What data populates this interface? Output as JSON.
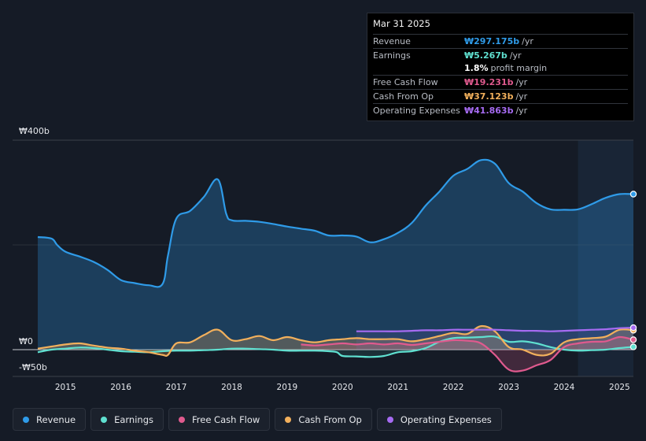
{
  "tooltip": {
    "date": "Mar 31 2025",
    "rows": [
      {
        "label": "Revenue",
        "value": "₩297.175b",
        "unit": "/yr",
        "color": "#2f9be8"
      },
      {
        "label": "Earnings",
        "value": "₩5.267b",
        "unit": "/yr",
        "color": "#5fe0d0"
      },
      {
        "label": "",
        "value": "1.8%",
        "unit": "profit margin",
        "color": "#ffffff"
      },
      {
        "label": "Free Cash Flow",
        "value": "₩19.231b",
        "unit": "/yr",
        "color": "#e05a8e"
      },
      {
        "label": "Cash From Op",
        "value": "₩37.123b",
        "unit": "/yr",
        "color": "#f2b05c"
      },
      {
        "label": "Operating Expenses",
        "value": "₩41.863b",
        "unit": "/yr",
        "color": "#a66bf2"
      }
    ]
  },
  "legend": [
    {
      "label": "Revenue",
      "color": "#2f9be8"
    },
    {
      "label": "Earnings",
      "color": "#5fe0d0"
    },
    {
      "label": "Free Cash Flow",
      "color": "#e05a8e"
    },
    {
      "label": "Cash From Op",
      "color": "#f2b05c"
    },
    {
      "label": "Operating Expenses",
      "color": "#a66bf2"
    }
  ],
  "chart_data": {
    "type": "area",
    "title": "",
    "y_axis_labels": [
      "₩400b",
      "₩0",
      "-₩50b"
    ],
    "ylim": [
      -50,
      400
    ],
    "x_ticks": [
      "2015",
      "2016",
      "2017",
      "2018",
      "2019",
      "2020",
      "2021",
      "2022",
      "2023",
      "2024",
      "2025"
    ],
    "xlim": [
      2014.5,
      2025.25
    ],
    "forecast_start": 2024.25,
    "series": [
      {
        "name": "Revenue",
        "color": "#2f9be8",
        "x": [
          2014.5,
          2014.75,
          2014.85,
          2015.0,
          2015.25,
          2015.5,
          2015.75,
          2016.0,
          2016.25,
          2016.5,
          2016.75,
          2016.85,
          2017.0,
          2017.25,
          2017.5,
          2017.75,
          2017.9,
          2018.0,
          2018.25,
          2018.5,
          2018.75,
          2019.0,
          2019.25,
          2019.5,
          2019.75,
          2020.0,
          2020.25,
          2020.5,
          2020.75,
          2021.0,
          2021.25,
          2021.5,
          2021.75,
          2022.0,
          2022.25,
          2022.5,
          2022.75,
          2023.0,
          2023.25,
          2023.5,
          2023.75,
          2024.0,
          2024.25,
          2024.5,
          2024.75,
          2025.0,
          2025.25
        ],
        "values": [
          215,
          212,
          200,
          187,
          178,
          168,
          153,
          133,
          127,
          123,
          125,
          180,
          250,
          265,
          292,
          325,
          260,
          247,
          246,
          244,
          240,
          235,
          231,
          227,
          218,
          218,
          216,
          205,
          211,
          223,
          242,
          275,
          302,
          332,
          345,
          362,
          355,
          318,
          302,
          280,
          268,
          267,
          268,
          278,
          290,
          297,
          297
        ]
      },
      {
        "name": "Earnings",
        "color": "#5fe0d0",
        "x": [
          2014.5,
          2014.75,
          2015.0,
          2015.25,
          2015.5,
          2015.75,
          2016.0,
          2016.25,
          2016.5,
          2016.75,
          2017.0,
          2017.25,
          2017.5,
          2017.75,
          2018.0,
          2018.25,
          2018.5,
          2018.75,
          2019.0,
          2019.25,
          2019.5,
          2019.75,
          2019.9,
          2020.0,
          2020.25,
          2020.5,
          2020.75,
          2021.0,
          2021.25,
          2021.5,
          2021.75,
          2022.0,
          2022.25,
          2022.5,
          2022.75,
          2023.0,
          2023.25,
          2023.5,
          2023.75,
          2024.0,
          2024.25,
          2024.5,
          2024.75,
          2025.0,
          2025.25
        ],
        "values": [
          -5,
          0,
          2,
          4,
          3,
          0,
          -3,
          -4,
          -5,
          -3,
          -2,
          -2,
          -1,
          0,
          2,
          2,
          1,
          0,
          -2,
          -2,
          -2,
          -3,
          -5,
          -12,
          -13,
          -14,
          -12,
          -5,
          -3,
          3,
          15,
          22,
          23,
          24,
          25,
          15,
          16,
          12,
          5,
          0,
          -2,
          -1,
          0,
          3,
          5.3
        ]
      },
      {
        "name": "Free Cash Flow",
        "color": "#e05a8e",
        "x": [
          2019.25,
          2019.5,
          2019.75,
          2020.0,
          2020.25,
          2020.5,
          2020.75,
          2021.0,
          2021.25,
          2021.5,
          2021.75,
          2022.0,
          2022.25,
          2022.5,
          2022.75,
          2023.0,
          2023.25,
          2023.5,
          2023.75,
          2024.0,
          2024.25,
          2024.5,
          2024.75,
          2025.0,
          2025.25
        ],
        "values": [
          10,
          8,
          10,
          12,
          10,
          12,
          10,
          12,
          9,
          12,
          15,
          18,
          17,
          12,
          -10,
          -38,
          -40,
          -30,
          -20,
          5,
          12,
          15,
          16,
          24,
          19
        ]
      },
      {
        "name": "Cash From Op",
        "color": "#f2b05c",
        "x": [
          2014.5,
          2014.75,
          2015.0,
          2015.25,
          2015.5,
          2015.75,
          2016.0,
          2016.25,
          2016.5,
          2016.75,
          2016.85,
          2017.0,
          2017.25,
          2017.5,
          2017.75,
          2018.0,
          2018.25,
          2018.5,
          2018.75,
          2019.0,
          2019.25,
          2019.5,
          2019.75,
          2020.0,
          2020.25,
          2020.5,
          2020.75,
          2021.0,
          2021.25,
          2021.5,
          2021.75,
          2022.0,
          2022.25,
          2022.5,
          2022.75,
          2023.0,
          2023.25,
          2023.5,
          2023.75,
          2024.0,
          2024.25,
          2024.5,
          2024.75,
          2025.0,
          2025.25
        ],
        "values": [
          2,
          6,
          10,
          12,
          8,
          4,
          2,
          -2,
          -5,
          -10,
          -10,
          12,
          14,
          28,
          38,
          18,
          20,
          26,
          18,
          24,
          18,
          14,
          18,
          20,
          22,
          20,
          20,
          20,
          16,
          20,
          26,
          32,
          30,
          45,
          35,
          5,
          0,
          -10,
          -8,
          14,
          20,
          22,
          25,
          38,
          37
        ]
      },
      {
        "name": "Operating Expenses",
        "color": "#a66bf2",
        "x": [
          2020.25,
          2020.5,
          2020.75,
          2021.0,
          2021.25,
          2021.5,
          2021.75,
          2022.0,
          2022.25,
          2022.5,
          2022.75,
          2023.0,
          2023.25,
          2023.5,
          2023.75,
          2024.0,
          2024.25,
          2024.5,
          2024.75,
          2025.0,
          2025.25
        ],
        "values": [
          35,
          35,
          35,
          35,
          36,
          37,
          37,
          38,
          38,
          38,
          38,
          37,
          36,
          36,
          35,
          36,
          37,
          38,
          39,
          41,
          42
        ]
      }
    ]
  }
}
